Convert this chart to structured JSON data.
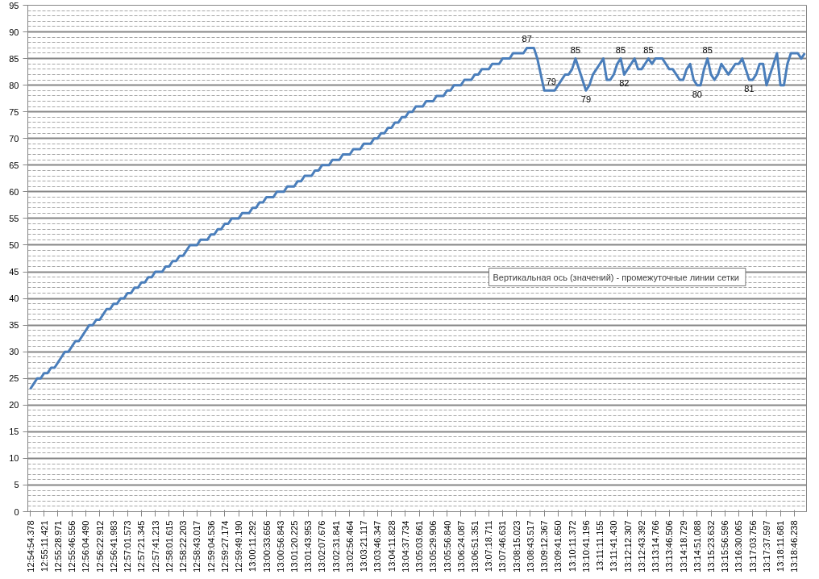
{
  "chart_data": {
    "type": "line",
    "categories": [
      "12:54:54.378",
      null,
      null,
      null,
      "12:55:11.421",
      null,
      null,
      null,
      "12:55:28.971",
      null,
      null,
      null,
      "12:55:46.556",
      null,
      null,
      null,
      "12:56:04.490",
      null,
      null,
      null,
      "12:56:22.912",
      null,
      null,
      null,
      "12:56:41.983",
      null,
      null,
      null,
      "12:57:01.573",
      null,
      null,
      null,
      "12:57:21.345",
      null,
      null,
      null,
      "12:57:41.213",
      null,
      null,
      null,
      "12:58:01.615",
      null,
      null,
      null,
      "12:58:22.203",
      null,
      null,
      null,
      "12:58:43.017",
      null,
      null,
      null,
      "12:59:04.536",
      null,
      null,
      null,
      "12:59:27.174",
      null,
      null,
      null,
      "12:59:49.190",
      null,
      null,
      null,
      "13:00:11.292",
      null,
      null,
      null,
      "13:00:33.656",
      null,
      null,
      null,
      "13:00:56.843",
      null,
      null,
      null,
      "13:01:20.225",
      null,
      null,
      null,
      "13:01:43.953",
      null,
      null,
      null,
      "13:02:07.676",
      null,
      null,
      null,
      "13:02:31.841",
      null,
      null,
      null,
      "13:02:56.464",
      null,
      null,
      null,
      "13:03:21.117",
      null,
      null,
      null,
      "13:03:46.347",
      null,
      null,
      null,
      "13:04:11.828",
      null,
      null,
      null,
      "13:04:37.734",
      null,
      null,
      null,
      "13:05:03.661",
      null,
      null,
      null,
      "13:05:29.906",
      null,
      null,
      null,
      "13:05:56.840",
      null,
      null,
      null,
      "13:06:24.087",
      null,
      null,
      null,
      "13:06:51.351",
      null,
      null,
      null,
      "13:07:18.711",
      null,
      null,
      null,
      "13:07:46.631",
      null,
      null,
      null,
      "13:08:15.023",
      null,
      null,
      null,
      "13:08:43.517",
      null,
      null,
      null,
      "13:09:12.367",
      null,
      null,
      null,
      "13:09:41.650",
      null,
      null,
      null,
      "13:10:11.372",
      null,
      null,
      null,
      "13:10:41.196",
      null,
      null,
      null,
      "13:11:11.155",
      null,
      null,
      null,
      "13:11:41.430",
      null,
      null,
      null,
      "13:12:12.307",
      null,
      null,
      null,
      "13:12:43.392",
      null,
      null,
      null,
      "13:13:14.766",
      null,
      null,
      null,
      "13:13:46.506",
      null,
      null,
      null,
      "13:14:18.729",
      null,
      null,
      null,
      "13:14:51.088",
      null,
      null,
      null,
      "13:15:23.632",
      null,
      null,
      null,
      "13:15:56.596",
      null,
      null,
      null,
      "13:16:30.065",
      null,
      null,
      null,
      "13:17:03.756",
      null,
      null,
      null,
      "13:17:37.597",
      null,
      null,
      null,
      "13:18:11.681",
      null,
      null,
      null,
      "13:18:46.238",
      null,
      null,
      null
    ],
    "series": [
      {
        "color": "#4a7ebb",
        "values": [
          23,
          24,
          25,
          25,
          26,
          26,
          27,
          27,
          28,
          29,
          30,
          30,
          31,
          32,
          32,
          33,
          34,
          35,
          35,
          36,
          36,
          37,
          38,
          38,
          39,
          39,
          40,
          40,
          41,
          41,
          42,
          42,
          43,
          43,
          44,
          44,
          45,
          45,
          45,
          46,
          46,
          47,
          47,
          48,
          48,
          49,
          50,
          50,
          50,
          51,
          51,
          51,
          52,
          52,
          53,
          53,
          54,
          54,
          55,
          55,
          55,
          56,
          56,
          56,
          57,
          57,
          58,
          58,
          59,
          59,
          59,
          60,
          60,
          60,
          61,
          61,
          61,
          62,
          62,
          63,
          63,
          63,
          64,
          64,
          65,
          65,
          65,
          66,
          66,
          66,
          67,
          67,
          67,
          68,
          68,
          68,
          69,
          69,
          69,
          70,
          70,
          71,
          71,
          72,
          72,
          73,
          73,
          74,
          74,
          75,
          75,
          76,
          76,
          76,
          77,
          77,
          77,
          78,
          78,
          78,
          79,
          79,
          80,
          80,
          80,
          81,
          81,
          81,
          82,
          82,
          83,
          83,
          83,
          84,
          84,
          84,
          85,
          85,
          85,
          86,
          86,
          86,
          86,
          87,
          87,
          87,
          85,
          82,
          79,
          79,
          79,
          79,
          80,
          81,
          82,
          82,
          83,
          85,
          83,
          81,
          79,
          80,
          82,
          83,
          84,
          85,
          81,
          81,
          82,
          84,
          85,
          82,
          83,
          84,
          85,
          83,
          83,
          84,
          85,
          84,
          85,
          85,
          85,
          84,
          83,
          83,
          82,
          81,
          81,
          83,
          84,
          81,
          80,
          80,
          83,
          85,
          82,
          81,
          82,
          84,
          83,
          82,
          83,
          84,
          84,
          85,
          83,
          81,
          81,
          82,
          84,
          84,
          80,
          82,
          84,
          86,
          80,
          80,
          84,
          86,
          86,
          86,
          85,
          86
        ],
        "value_labels": [
          null,
          null,
          null,
          null,
          null,
          null,
          null,
          null,
          null,
          null,
          null,
          null,
          null,
          null,
          null,
          null,
          null,
          null,
          null,
          null,
          null,
          null,
          null,
          null,
          null,
          null,
          null,
          null,
          null,
          null,
          null,
          null,
          null,
          null,
          null,
          null,
          null,
          null,
          null,
          null,
          null,
          null,
          null,
          null,
          null,
          null,
          null,
          null,
          null,
          null,
          null,
          null,
          null,
          null,
          null,
          null,
          null,
          null,
          null,
          null,
          null,
          null,
          null,
          null,
          null,
          null,
          null,
          null,
          null,
          null,
          null,
          null,
          null,
          null,
          null,
          null,
          null,
          null,
          null,
          null,
          null,
          null,
          null,
          null,
          null,
          null,
          null,
          null,
          null,
          null,
          null,
          null,
          null,
          null,
          null,
          null,
          null,
          null,
          null,
          null,
          null,
          null,
          null,
          null,
          null,
          null,
          null,
          null,
          null,
          null,
          null,
          null,
          null,
          null,
          null,
          null,
          null,
          null,
          null,
          null,
          null,
          null,
          null,
          null,
          null,
          null,
          null,
          null,
          null,
          null,
          null,
          null,
          null,
          null,
          null,
          null,
          null,
          null,
          null,
          null,
          null,
          null,
          null,
          "87",
          null,
          null,
          null,
          null,
          null,
          null,
          "79",
          null,
          null,
          null,
          null,
          null,
          null,
          "85",
          null,
          null,
          "79",
          null,
          null,
          null,
          null,
          null,
          null,
          null,
          null,
          null,
          "85",
          "82",
          null,
          null,
          null,
          null,
          null,
          null,
          "85",
          null,
          null,
          null,
          null,
          null,
          null,
          null,
          null,
          null,
          null,
          null,
          null,
          null,
          "80",
          null,
          null,
          "85",
          null,
          null,
          null,
          null,
          null,
          null,
          null,
          null,
          null,
          null,
          null,
          "81",
          null,
          null,
          null,
          null,
          null,
          null,
          null,
          null,
          null,
          null,
          null,
          null,
          null,
          null,
          null,
          null
        ]
      }
    ],
    "ylim": [
      0,
      95
    ],
    "yticks": [
      0,
      5,
      10,
      15,
      20,
      25,
      30,
      35,
      40,
      45,
      50,
      55,
      60,
      65,
      70,
      75,
      80,
      85,
      90,
      95
    ],
    "grid": "y",
    "marker": "none",
    "line_style": "solid",
    "annotations": [
      "Вертикальная ось (значений)  - промежуточные линии сетки"
    ]
  }
}
